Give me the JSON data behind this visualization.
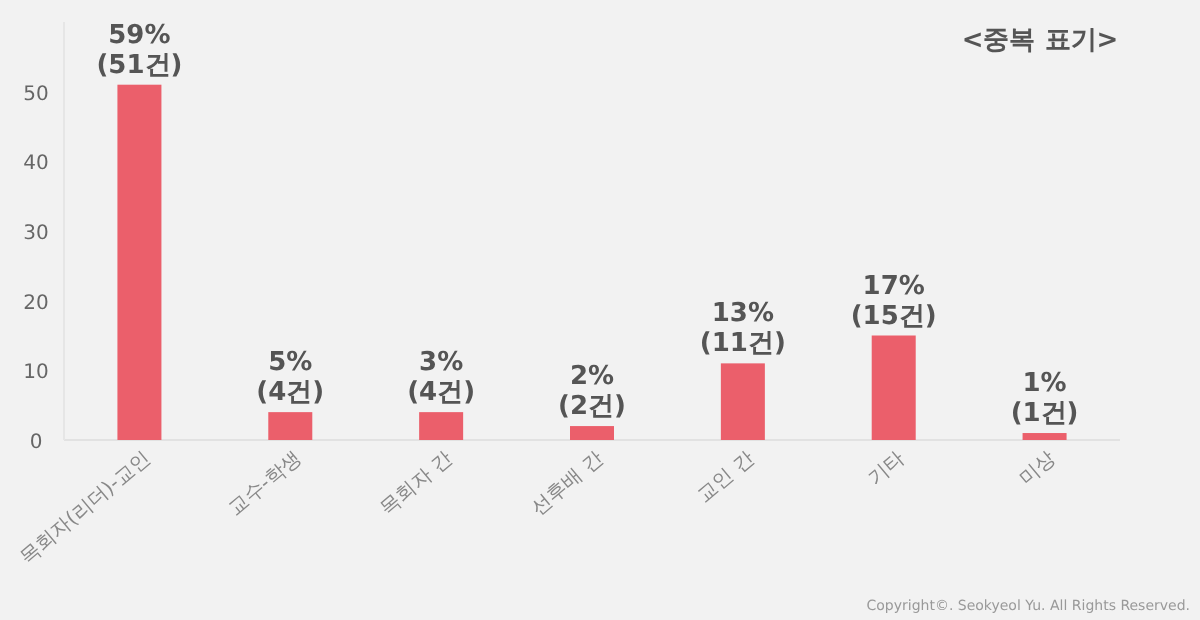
{
  "chart_data": {
    "type": "bar",
    "categories": [
      "목회자(리더)-교인",
      "교수-학생",
      "목회자 간",
      "선후배 간",
      "교인 간",
      "기타",
      "미상"
    ],
    "values": [
      51,
      4,
      4,
      2,
      11,
      15,
      1
    ],
    "value_labels": [
      "59% (51건)",
      "5% (4건)",
      "3% (4건)",
      "2% (2건)",
      "13% (11건)",
      "17% (15건)",
      "1% (1건)"
    ],
    "color": "#eb5f6b",
    "ylim": [
      0,
      60
    ],
    "yticks": [
      0,
      10,
      20,
      30,
      40,
      50
    ],
    "grid": false,
    "annotations": [
      "<중복 표기>",
      "Copyright©. Seokyeol Yu. All Rights Reserved."
    ]
  }
}
